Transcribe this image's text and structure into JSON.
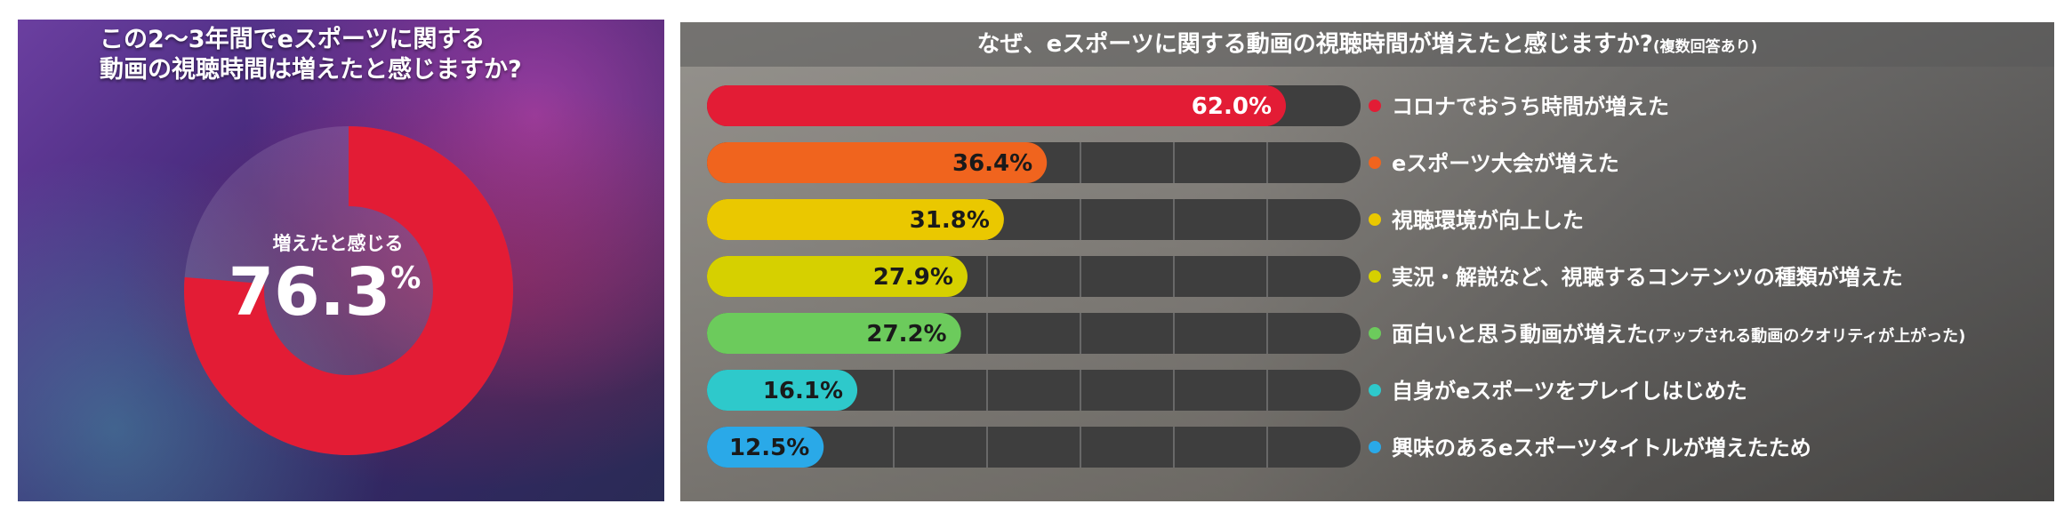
{
  "left": {
    "title_line1": "この2〜3年間でeスポーツに関する",
    "title_line2": "動画の視聴時間は増えたと感じますか?",
    "center_label": "増えたと感じる",
    "center_value": "76.3",
    "center_unit": "%"
  },
  "right": {
    "title_main": "なぜ、eスポーツに関する動画の視聴時間が増えたと感じますか?",
    "title_note": "(複数回答あり)"
  },
  "chart_data": [
    {
      "type": "pie",
      "title": "この2〜3年間でeスポーツに関する動画の視聴時間は増えたと感じますか?",
      "categories": [
        "増えたと感じる"
      ],
      "values": [
        76.3
      ],
      "unit": "%",
      "colors": [
        "#e31c35"
      ]
    },
    {
      "type": "bar",
      "orientation": "horizontal",
      "title": "なぜ、eスポーツに関する動画の視聴時間が増えたと感じますか?(複数回答あり)",
      "categories": [
        "コロナでおうち時間が増えた",
        "eスポーツ大会が増えた",
        "視聴環境が向上した",
        "実況・解説など、視聴するコンテンツの種類が増えた",
        "面白いと思う動画が増えた(アップされる動画のクオリティが上がった)",
        "自身がeスポーツをプレイしはじめた",
        "興味のあるeスポーツタイトルが増えたため"
      ],
      "values": [
        62.0,
        36.4,
        31.8,
        27.9,
        27.2,
        16.1,
        12.5
      ],
      "value_labels": [
        "62.0%",
        "36.4%",
        "31.8%",
        "27.9%",
        "27.2%",
        "16.1%",
        "12.5%"
      ],
      "colors": [
        "#e31c35",
        "#f0641e",
        "#eac800",
        "#d6d000",
        "#6ccb5c",
        "#2ec9cb",
        "#2aa9e8"
      ],
      "xlim": [
        0,
        70
      ],
      "grid": true
    }
  ]
}
